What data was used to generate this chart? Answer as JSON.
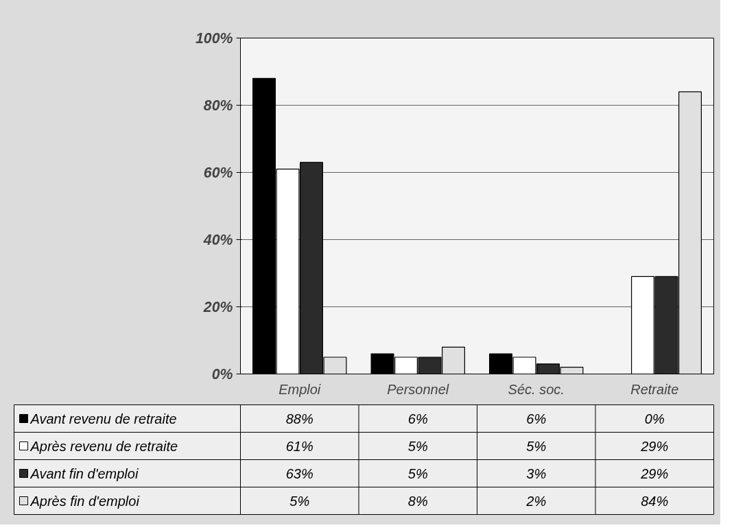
{
  "chart_data": {
    "type": "bar",
    "categories": [
      "Emploi",
      "Personnel",
      "Séc. soc.",
      "Retraite"
    ],
    "series": [
      {
        "name": "Avant revenu de retraite",
        "color": "#000000",
        "values": [
          88,
          6,
          6,
          0
        ],
        "value_labels": [
          "88%",
          "6%",
          "6%",
          "0%"
        ]
      },
      {
        "name": "Après revenu de retraite",
        "color": "#ffffff",
        "values": [
          61,
          5,
          5,
          29
        ],
        "value_labels": [
          "61%",
          "5%",
          "5%",
          "29%"
        ]
      },
      {
        "name": "Avant fin d'emploi",
        "color": "#2b2b2b",
        "values": [
          63,
          5,
          3,
          29
        ],
        "value_labels": [
          "63%",
          "5%",
          "3%",
          "29%"
        ]
      },
      {
        "name": "Après fin d'emploi",
        "color": "#e0e0e0",
        "values": [
          5,
          8,
          2,
          84
        ],
        "value_labels": [
          "5%",
          "8%",
          "2%",
          "84%"
        ]
      }
    ],
    "ylim": [
      0,
      100
    ],
    "yticks": [
      {
        "value": 0,
        "label": "0%"
      },
      {
        "value": 20,
        "label": "20%"
      },
      {
        "value": 40,
        "label": "40%"
      },
      {
        "value": 60,
        "label": "60%"
      },
      {
        "value": 80,
        "label": "80%"
      },
      {
        "value": 100,
        "label": "100%"
      }
    ],
    "grid": "y",
    "legend": "bottom left"
  }
}
